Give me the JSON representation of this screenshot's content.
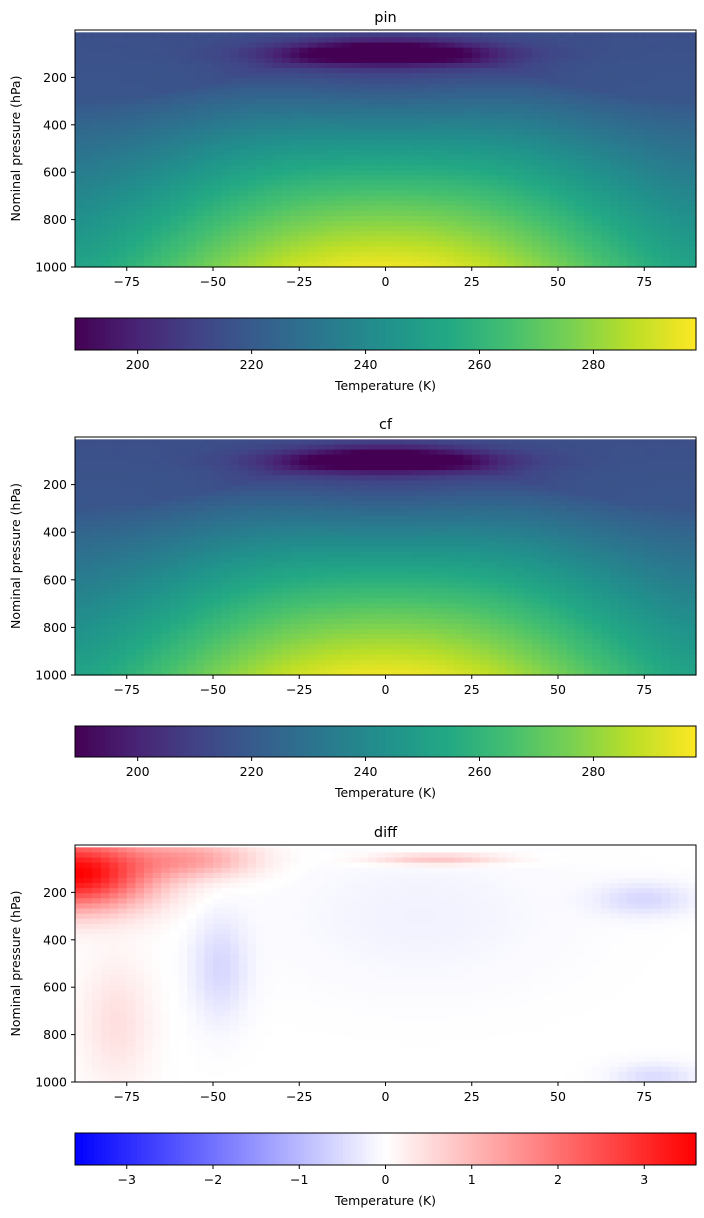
{
  "chart_data": [
    {
      "type": "heatmap",
      "title": "pin",
      "xlabel": "",
      "ylabel": "Nominal pressure (hPa)",
      "xlim": [
        -90,
        90
      ],
      "ylim": [
        1000,
        0
      ],
      "xticks": [
        -75,
        -50,
        -25,
        0,
        25,
        50,
        75
      ],
      "yticks": [
        200,
        400,
        600,
        800,
        1000
      ],
      "colormap": "viridis",
      "colorbar": {
        "label": "Temperature (K)",
        "range": [
          189,
          298
        ],
        "ticks": [
          200,
          220,
          240,
          260,
          280
        ],
        "orientation": "horizontal"
      },
      "field_description_values_K": {
        "surface_equator": 296,
        "surface_pole": 255,
        "tropopause_cold_core_at_100hPa": 190
      }
    },
    {
      "type": "heatmap",
      "title": "cf",
      "xlabel": "",
      "ylabel": "Nominal pressure (hPa)",
      "xlim": [
        -90,
        90
      ],
      "ylim": [
        1000,
        0
      ],
      "xticks": [
        -75,
        -50,
        -25,
        0,
        25,
        50,
        75
      ],
      "yticks": [
        200,
        400,
        600,
        800,
        1000
      ],
      "colormap": "viridis",
      "colorbar": {
        "label": "Temperature (K)",
        "range": [
          189,
          298
        ],
        "ticks": [
          200,
          220,
          240,
          260,
          280
        ],
        "orientation": "horizontal"
      }
    },
    {
      "type": "heatmap",
      "title": "diff",
      "xlabel": "",
      "ylabel": "Nominal pressure (hPa)",
      "xlim": [
        -90,
        90
      ],
      "ylim": [
        1000,
        0
      ],
      "xticks": [
        -75,
        -50,
        -25,
        0,
        25,
        50,
        75
      ],
      "yticks": [
        200,
        400,
        600,
        800,
        1000
      ],
      "colormap": "bwr",
      "colorbar": {
        "label": "Temperature (K)",
        "range": [
          -3.6,
          3.6
        ],
        "ticks": [
          -3,
          -2,
          -1,
          0,
          1,
          2,
          3
        ],
        "orientation": "horizontal"
      }
    }
  ]
}
